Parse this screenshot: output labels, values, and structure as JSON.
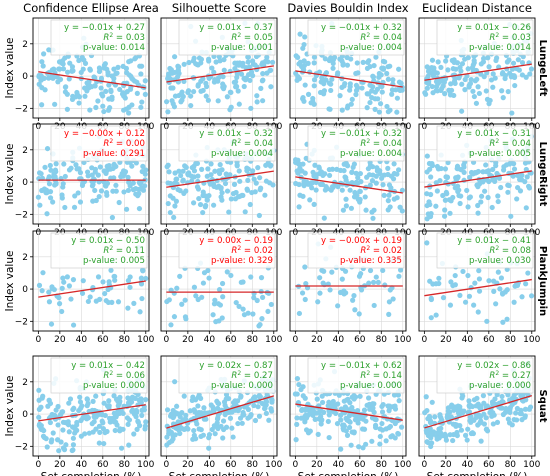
{
  "columns": [
    "Confidence Ellipse Area",
    "Silhouette Score",
    "Davies Bouldin Index",
    "Euclidean Distance"
  ],
  "rows": [
    "LungeLeft",
    "LungeRight",
    "PlankJumpin",
    "Squat"
  ],
  "xlabel": "Set completion (%)",
  "ylabel": "Index value",
  "colors": {
    "point": "#87ceeb",
    "fit": "#d62728",
    "significant": "#2ca02c",
    "not_significant": "#ff0000",
    "grid": "#d9d9d9"
  },
  "chart_data": {
    "type": "scatter",
    "xlim": [
      -5,
      103
    ],
    "ylim": [
      -2.6,
      3.6
    ],
    "xticks": [
      0,
      20,
      40,
      60,
      80,
      100
    ],
    "yticks": [
      -2,
      0,
      2
    ],
    "grid": true,
    "panels": [
      {
        "row": "LungeLeft",
        "column": "Confidence Ellipse Area",
        "slope": -0.01,
        "intercept": 0.27,
        "eq": "y = −0.01x + 0.27",
        "r2": "0.03",
        "p": "0.014",
        "significant": true,
        "n": 170,
        "noise": 1.0
      },
      {
        "row": "LungeLeft",
        "column": "Silhouette Score",
        "slope": 0.01,
        "intercept": -0.37,
        "eq": "y = 0.01x − 0.37",
        "r2": "0.05",
        "p": "0.001",
        "significant": true,
        "n": 170,
        "noise": 1.0
      },
      {
        "row": "LungeLeft",
        "column": "Davies Bouldin Index",
        "slope": -0.01,
        "intercept": 0.32,
        "eq": "y = −0.01x + 0.32",
        "r2": "0.04",
        "p": "0.004",
        "significant": true,
        "n": 170,
        "noise": 1.0
      },
      {
        "row": "LungeLeft",
        "column": "Euclidean Distance",
        "slope": 0.01,
        "intercept": -0.26,
        "eq": "y = 0.01x − 0.26",
        "r2": "0.03",
        "p": "0.014",
        "significant": true,
        "n": 170,
        "noise": 1.0
      },
      {
        "row": "LungeRight",
        "column": "Confidence Ellipse Area",
        "slope": 0.0,
        "intercept": 0.12,
        "eq": "y = −0.00x + 0.12",
        "r2": "0.00",
        "p": "0.291",
        "significant": false,
        "n": 160,
        "noise": 1.0
      },
      {
        "row": "LungeRight",
        "column": "Silhouette Score",
        "slope": 0.01,
        "intercept": -0.32,
        "eq": "y = 0.01x − 0.32",
        "r2": "0.04",
        "p": "0.004",
        "significant": true,
        "n": 160,
        "noise": 1.0
      },
      {
        "row": "LungeRight",
        "column": "Davies Bouldin Index",
        "slope": -0.01,
        "intercept": 0.32,
        "eq": "y = −0.01x + 0.32",
        "r2": "0.04",
        "p": "0.004",
        "significant": true,
        "n": 160,
        "noise": 1.0
      },
      {
        "row": "LungeRight",
        "column": "Euclidean Distance",
        "slope": 0.01,
        "intercept": -0.31,
        "eq": "y = 0.01x − 0.31",
        "r2": "0.04",
        "p": "0.005",
        "significant": true,
        "n": 160,
        "noise": 1.0
      },
      {
        "row": "PlankJumpin",
        "column": "Confidence Ellipse Area",
        "slope": 0.01,
        "intercept": -0.5,
        "eq": "y = 0.01x − 0.50",
        "r2": "0.11",
        "p": "0.005",
        "significant": true,
        "n": 60,
        "noise": 0.9
      },
      {
        "row": "PlankJumpin",
        "column": "Silhouette Score",
        "slope": 0.0,
        "intercept": -0.19,
        "eq": "y = 0.00x − 0.19",
        "r2": "0.02",
        "p": "0.329",
        "significant": false,
        "n": 60,
        "noise": 1.0
      },
      {
        "row": "PlankJumpin",
        "column": "Davies Bouldin Index",
        "slope": 0.0,
        "intercept": 0.19,
        "eq": "y = −0.00x + 0.19",
        "r2": "0.02",
        "p": "0.335",
        "significant": false,
        "n": 60,
        "noise": 1.0
      },
      {
        "row": "PlankJumpin",
        "column": "Euclidean Distance",
        "slope": 0.01,
        "intercept": -0.41,
        "eq": "y = 0.01x − 0.41",
        "r2": "0.08",
        "p": "0.030",
        "significant": true,
        "n": 60,
        "noise": 1.0
      },
      {
        "row": "Squat",
        "column": "Confidence Ellipse Area",
        "slope": 0.01,
        "intercept": -0.42,
        "eq": "y = 0.01x − 0.42",
        "r2": "0.06",
        "p": "0.000",
        "significant": true,
        "n": 220,
        "noise": 0.95
      },
      {
        "row": "Squat",
        "column": "Silhouette Score",
        "slope": 0.02,
        "intercept": -0.87,
        "eq": "y = 0.02x − 0.87",
        "r2": "0.27",
        "p": "0.000",
        "significant": true,
        "n": 220,
        "noise": 0.8
      },
      {
        "row": "Squat",
        "column": "Davies Bouldin Index",
        "slope": -0.01,
        "intercept": 0.62,
        "eq": "y = −0.01x + 0.62",
        "r2": "0.14",
        "p": "0.000",
        "significant": true,
        "n": 220,
        "noise": 0.85
      },
      {
        "row": "Squat",
        "column": "Euclidean Distance",
        "slope": 0.02,
        "intercept": -0.86,
        "eq": "y = 0.02x − 0.86",
        "r2": "0.27",
        "p": "0.000",
        "significant": true,
        "n": 220,
        "noise": 0.8
      }
    ]
  }
}
